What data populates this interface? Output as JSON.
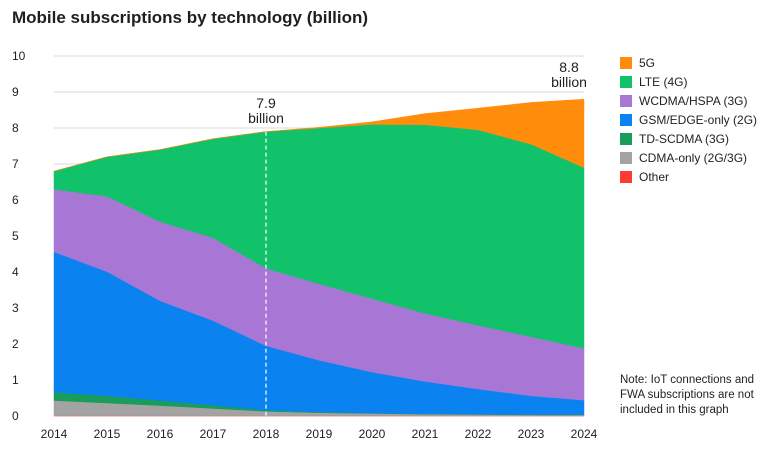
{
  "title": "Mobile subscriptions by technology (billion)",
  "note": "Note: IoT connections and FWA subscriptions are not included in this graph",
  "annotations": [
    {
      "value": "7.9",
      "unit": "billion"
    },
    {
      "value": "8.8",
      "unit": "billion"
    }
  ],
  "colors": {
    "5G": "#ff8c0a",
    "LTE (4G)": "#12c26b",
    "WCDMA/HSPA (3G)": "#a877d6",
    "GSM/EDGE-only (2G)": "#0a82f0",
    "TD-SCDMA (3G)": "#1a9c5a",
    "CDMA-only (2G/3G)": "#a3a3a3",
    "Other": "#ff3b2f"
  },
  "chart_data": {
    "type": "area",
    "stacked": true,
    "x": [
      2014,
      2015,
      2016,
      2017,
      2018,
      2019,
      2020,
      2021,
      2022,
      2023,
      2024
    ],
    "ylim": [
      0,
      10
    ],
    "yticks": [
      0,
      1,
      2,
      3,
      4,
      5,
      6,
      7,
      8,
      9,
      10
    ],
    "grid": "horizontal",
    "legend": "right",
    "vertical_marker_x": 2018,
    "series": [
      {
        "name": "Other",
        "values": [
          0.01,
          0.01,
          0.01,
          0.01,
          0.01,
          0.01,
          0.01,
          0.01,
          0.01,
          0.01,
          0.01
        ]
      },
      {
        "name": "CDMA-only (2G/3G)",
        "values": [
          0.42,
          0.35,
          0.28,
          0.2,
          0.12,
          0.08,
          0.06,
          0.04,
          0.03,
          0.02,
          0.02
        ]
      },
      {
        "name": "TD-SCDMA (3G)",
        "values": [
          0.23,
          0.2,
          0.14,
          0.09,
          0.03,
          0.02,
          0.01,
          0.01,
          0.01,
          0.01,
          0.01
        ]
      },
      {
        "name": "GSM/EDGE-only (2G)",
        "values": [
          3.9,
          3.45,
          2.77,
          2.35,
          1.79,
          1.44,
          1.14,
          0.9,
          0.7,
          0.52,
          0.4
        ]
      },
      {
        "name": "WCDMA/HSPA (3G)",
        "values": [
          1.74,
          2.09,
          2.2,
          2.3,
          2.15,
          2.12,
          2.04,
          1.89,
          1.77,
          1.64,
          1.44
        ]
      },
      {
        "name": "LTE (4G)",
        "values": [
          0.5,
          1.1,
          2.0,
          2.75,
          3.8,
          4.33,
          4.84,
          5.24,
          5.43,
          5.35,
          5.02
        ]
      },
      {
        "name": "5G",
        "values": [
          0,
          0,
          0,
          0,
          0,
          0.02,
          0.07,
          0.31,
          0.6,
          1.16,
          1.9
        ]
      }
    ]
  }
}
